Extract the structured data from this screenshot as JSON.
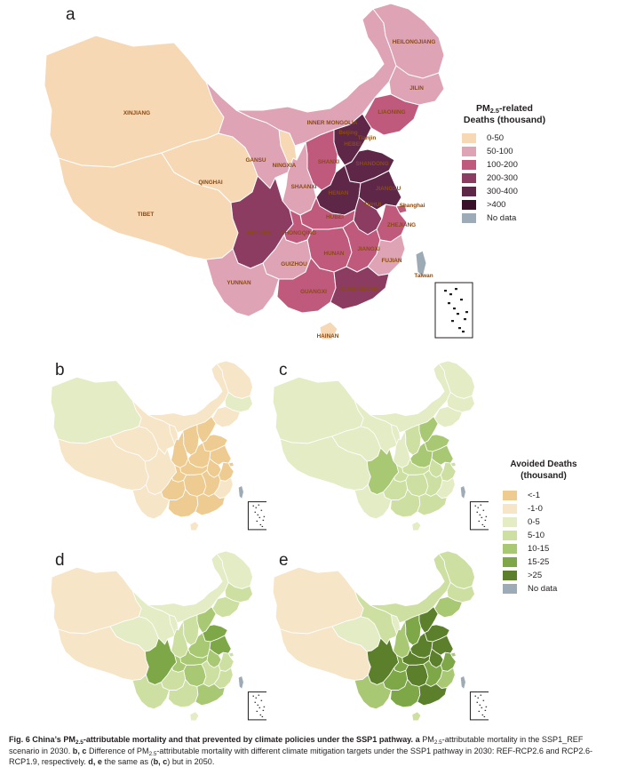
{
  "panels": {
    "a": {
      "letter": "a",
      "provinces": [
        {
          "name": "XINJIANG",
          "bin": 0
        },
        {
          "name": "TIBET",
          "bin": 0
        },
        {
          "name": "QINGHAI",
          "bin": 0
        },
        {
          "name": "GANSU",
          "bin": 1
        },
        {
          "name": "NINGXIA",
          "bin": 0
        },
        {
          "name": "INNER MONGOLIA",
          "bin": 1
        },
        {
          "name": "HEILONGJIANG",
          "bin": 1
        },
        {
          "name": "JILIN",
          "bin": 1
        },
        {
          "name": "LIAONING",
          "bin": 2
        },
        {
          "name": "Beijing",
          "bin": 2
        },
        {
          "name": "Tianjin",
          "bin": 2
        },
        {
          "name": "HEBEI",
          "bin": 4
        },
        {
          "name": "SHANXI",
          "bin": 2
        },
        {
          "name": "SHAANXI",
          "bin": 1
        },
        {
          "name": "SHANDONG",
          "bin": 4
        },
        {
          "name": "HENAN",
          "bin": 4
        },
        {
          "name": "JIANGSU",
          "bin": 4
        },
        {
          "name": "ANHUI",
          "bin": 3
        },
        {
          "name": "Shanghai",
          "bin": 2
        },
        {
          "name": "HUBEI",
          "bin": 2
        },
        {
          "name": "ZHEJIANG",
          "bin": 2
        },
        {
          "name": "SICHUAN",
          "bin": 3
        },
        {
          "name": "CHONGQING",
          "bin": 2
        },
        {
          "name": "HUNAN",
          "bin": 2
        },
        {
          "name": "JIANGXI",
          "bin": 2
        },
        {
          "name": "FUJIAN",
          "bin": 1
        },
        {
          "name": "GUIZHOU",
          "bin": 1
        },
        {
          "name": "YUNNAN",
          "bin": 1
        },
        {
          "name": "GUANGXI",
          "bin": 2
        },
        {
          "name": "GUANGDONG",
          "bin": 3
        },
        {
          "name": "HAINAN",
          "bin": 0
        },
        {
          "name": "Taiwan",
          "bin": 6
        }
      ],
      "legend": {
        "title": "PM2.5-related Deaths (thousand)",
        "title_line1_prefix": "PM",
        "title_line1_sub": "2.5",
        "title_line1_suffix": "-related",
        "title_line2": "Deaths (thousand)",
        "items": [
          {
            "label": "0-50",
            "color": "#f6d8b4"
          },
          {
            "label": "50-100",
            "color": "#dea3b4"
          },
          {
            "label": "100-200",
            "color": "#c05a7c"
          },
          {
            "label": "200-300",
            "color": "#8c3c61"
          },
          {
            "label": "300-400",
            "color": "#5e2748"
          },
          {
            "label": ">400",
            "color": "#3a1028"
          },
          {
            "label": "No data",
            "color": "#9dabb6"
          }
        ]
      }
    },
    "small": [
      {
        "letter": "b",
        "bins": {
          "XINJIANG": 2,
          "TIBET": 1,
          "QINGHAI": 1,
          "GANSU": 1,
          "NINGXIA": 1,
          "INNER MONGOLIA": 1,
          "HEILONGJIANG": 1,
          "JILIN": 2,
          "LIAONING": 1,
          "Beijing": 0,
          "Tianjin": 0,
          "HEBEI": 0,
          "SHANXI": 0,
          "SHAANXI": 0,
          "SHANDONG": 0,
          "HENAN": 0,
          "JIANGSU": 0,
          "ANHUI": 0,
          "Shanghai": 0,
          "HUBEI": 0,
          "ZHEJIANG": 0,
          "SICHUAN": 1,
          "CHONGQING": 0,
          "HUNAN": 0,
          "JIANGXI": 0,
          "FUJIAN": 1,
          "GUIZHOU": 0,
          "YUNNAN": 1,
          "GUANGXI": 0,
          "GUANGDONG": 0,
          "HAINAN": 1,
          "Taiwan": 7
        }
      },
      {
        "letter": "c",
        "bins": {
          "XINJIANG": 2,
          "TIBET": 2,
          "QINGHAI": 2,
          "GANSU": 2,
          "NINGXIA": 2,
          "INNER MONGOLIA": 2,
          "HEILONGJIANG": 2,
          "JILIN": 2,
          "LIAONING": 2,
          "Beijing": 3,
          "Tianjin": 3,
          "HEBEI": 4,
          "SHANXI": 3,
          "SHAANXI": 2,
          "SHANDONG": 4,
          "HENAN": 4,
          "JIANGSU": 4,
          "ANHUI": 3,
          "Shanghai": 3,
          "HUBEI": 3,
          "ZHEJIANG": 3,
          "SICHUAN": 4,
          "CHONGQING": 3,
          "HUNAN": 3,
          "JIANGXI": 3,
          "FUJIAN": 2,
          "GUIZHOU": 3,
          "YUNNAN": 2,
          "GUANGXI": 3,
          "GUANGDONG": 3,
          "HAINAN": 2,
          "Taiwan": 7
        }
      },
      {
        "letter": "d",
        "bins": {
          "XINJIANG": 1,
          "TIBET": 1,
          "QINGHAI": 2,
          "GANSU": 2,
          "NINGXIA": 2,
          "INNER MONGOLIA": 2,
          "HEILONGJIANG": 2,
          "JILIN": 3,
          "LIAONING": 3,
          "Beijing": 3,
          "Tianjin": 3,
          "HEBEI": 4,
          "SHANXI": 3,
          "SHAANXI": 3,
          "SHANDONG": 5,
          "HENAN": 4,
          "JIANGSU": 5,
          "ANHUI": 4,
          "Shanghai": 3,
          "HUBEI": 4,
          "ZHEJIANG": 3,
          "SICHUAN": 5,
          "CHONGQING": 4,
          "HUNAN": 4,
          "JIANGXI": 3,
          "FUJIAN": 3,
          "GUIZHOU": 3,
          "YUNNAN": 3,
          "GUANGXI": 3,
          "GUANGDONG": 4,
          "HAINAN": 2,
          "Taiwan": 7
        }
      },
      {
        "letter": "e",
        "bins": {
          "XINJIANG": 1,
          "TIBET": 1,
          "QINGHAI": 2,
          "GANSU": 3,
          "NINGXIA": 2,
          "INNER MONGOLIA": 3,
          "HEILONGJIANG": 3,
          "JILIN": 3,
          "LIAONING": 4,
          "Beijing": 4,
          "Tianjin": 4,
          "HEBEI": 6,
          "SHANXI": 5,
          "SHAANXI": 4,
          "SHANDONG": 6,
          "HENAN": 6,
          "JIANGSU": 6,
          "ANHUI": 6,
          "Shanghai": 4,
          "HUBEI": 6,
          "ZHEJIANG": 5,
          "SICHUAN": 6,
          "CHONGQING": 5,
          "HUNAN": 6,
          "JIANGXI": 5,
          "FUJIAN": 4,
          "GUIZHOU": 5,
          "YUNNAN": 4,
          "GUANGXI": 5,
          "GUANGDONG": 6,
          "HAINAN": 3,
          "Taiwan": 7
        }
      }
    ],
    "avoided_legend": {
      "title_line1": "Avoided Deaths",
      "title_line2": "(thousand)",
      "items": [
        {
          "label": "<-1",
          "color": "#eecb90"
        },
        {
          "label": "-1-0",
          "color": "#f7e5c8"
        },
        {
          "label": "0-5",
          "color": "#e3ecc4"
        },
        {
          "label": "5-10",
          "color": "#cde0a2"
        },
        {
          "label": "10-15",
          "color": "#a9c873"
        },
        {
          "label": "15-25",
          "color": "#7ea748"
        },
        {
          "label": ">25",
          "color": "#5b7f2b"
        },
        {
          "label": "No data",
          "color": "#9dabb6"
        }
      ]
    }
  },
  "caption": {
    "fig": "Fig. 6",
    "title_part1": "China’s PM",
    "title_sub": "2.5",
    "title_part2": "-attributable mortality and that prevented by climate policies under the SSP1 pathway.",
    "a_letter": "a",
    "a_text1": "PM",
    "a_sub": "2.5",
    "a_text2": "-attributable mortality in the SSP1_REF scenario in 2030.",
    "bc_letters": "b, c",
    "bc_text1": "Difference of PM",
    "bc_sub": "2.5",
    "bc_text2": "-attributable mortality with different climate mitigation targets under the SSP1 pathway in 2030: REF-RCP2.6 and RCP2.6-RCP1.9, respectively.",
    "de_letters": "d, e",
    "de_text1": "the same as (",
    "de_bc": "b, c",
    "de_text2": ") but in 2050."
  }
}
